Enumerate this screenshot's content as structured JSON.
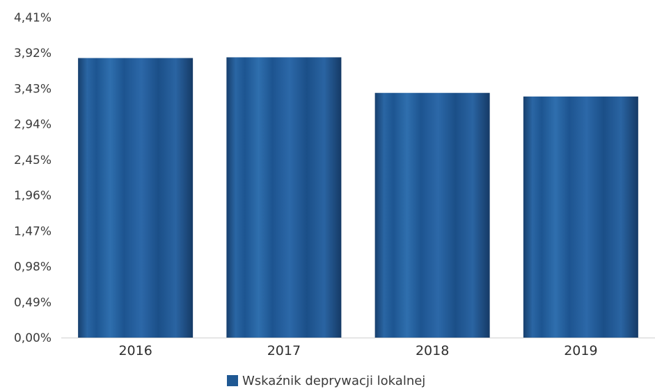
{
  "chart_data": {
    "type": "bar",
    "categories": [
      "2016",
      "2017",
      "2018",
      "2019"
    ],
    "series": [
      {
        "name": "Wskaźnik deprywacji lokalnej",
        "values": [
          3.85,
          3.86,
          3.37,
          3.32
        ]
      }
    ],
    "yticks": [
      "0,00%",
      "0,49%",
      "0,98%",
      "1,47%",
      "1,96%",
      "2,45%",
      "2,94%",
      "3,43%",
      "3,92%",
      "4,41%"
    ],
    "ylim": [
      0,
      4.41
    ],
    "grid": false,
    "legend": "bottom-center",
    "colors": {
      "bar": "#1f5893",
      "bar_dark": "#163f6e",
      "bar_light": "#3f7bb8",
      "axis": "#d0d0d0"
    }
  }
}
